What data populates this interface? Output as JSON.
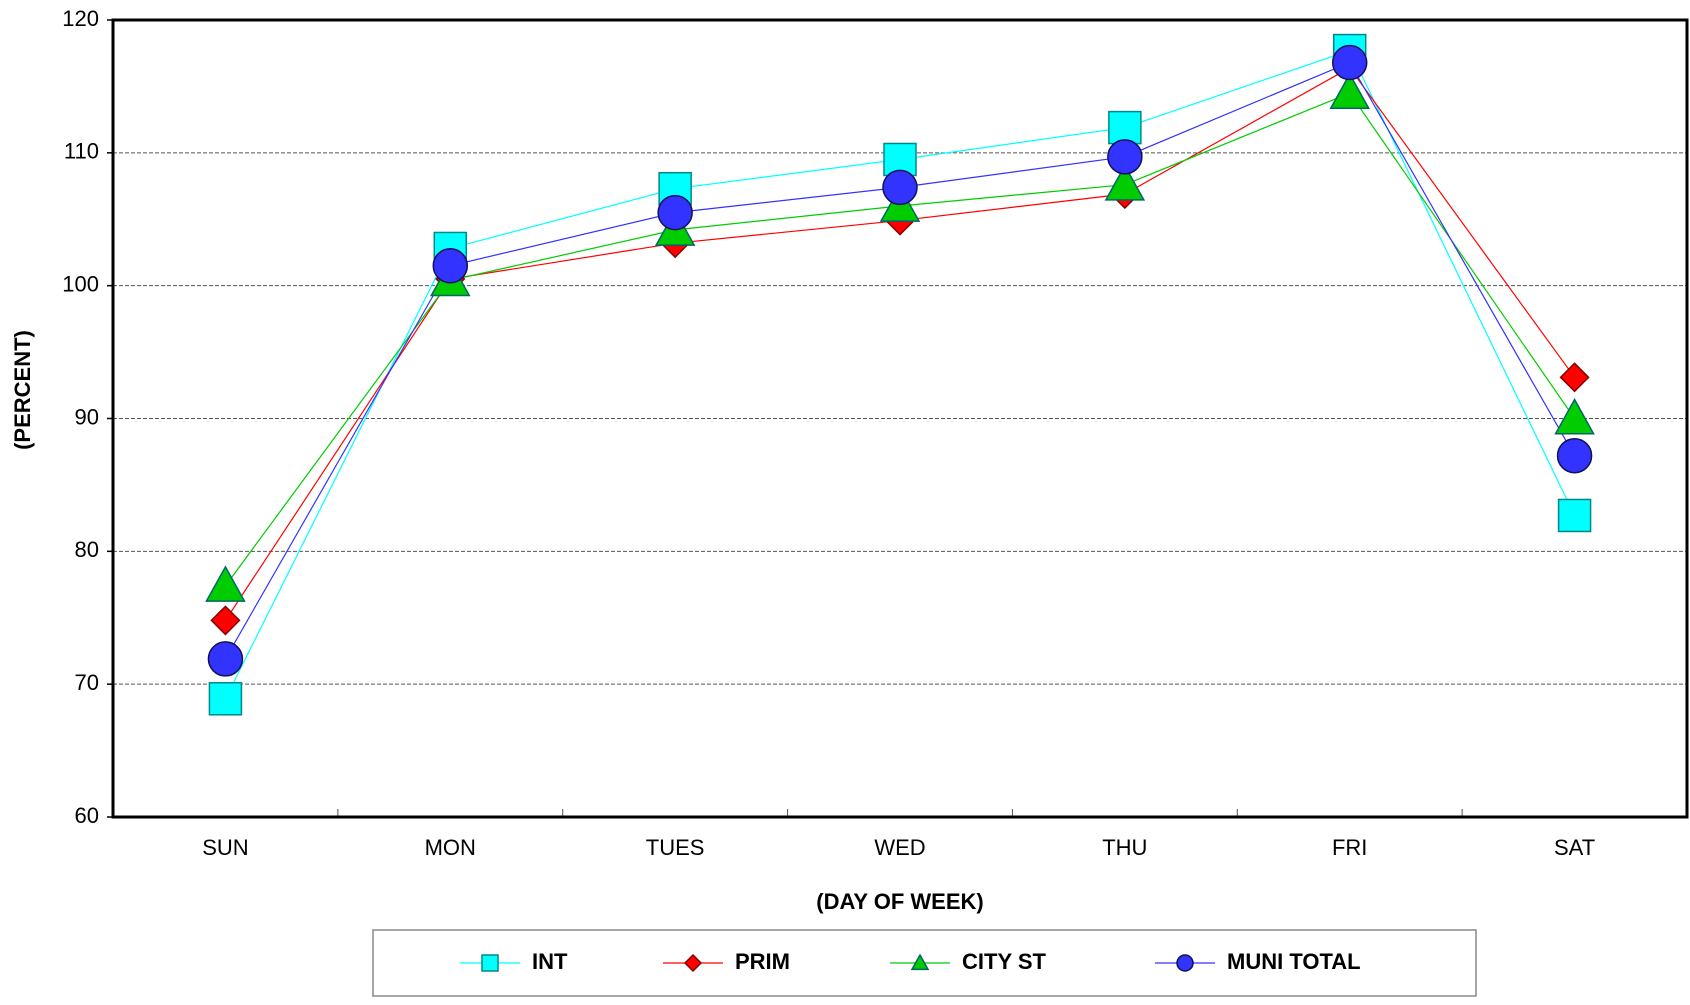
{
  "chart_data": {
    "type": "line",
    "x_label": "(DAY OF WEEK)",
    "y_label": "(PERCENT)",
    "categories": [
      "SUN",
      "MON",
      "TUES",
      "WED",
      "THU",
      "FRI",
      "SAT"
    ],
    "series": [
      {
        "name": "INT",
        "color": "#00ffff",
        "marker": "square",
        "values": [
          68.9,
          102.8,
          107.3,
          109.5,
          111.9,
          117.7,
          82.7
        ]
      },
      {
        "name": "PRIM",
        "color": "#ff0000",
        "marker": "diamond",
        "values": [
          74.8,
          100.5,
          103.2,
          104.9,
          106.9,
          116.4,
          93.1
        ]
      },
      {
        "name": "CITY ST",
        "color": "#00cc00",
        "marker": "triangle",
        "values": [
          77.4,
          100.4,
          104.2,
          106.0,
          107.6,
          114.5,
          90.0
        ]
      },
      {
        "name": "MUNI TOTAL",
        "color": "#3333ff",
        "marker": "circle",
        "values": [
          71.9,
          101.5,
          105.5,
          107.4,
          109.7,
          116.8,
          87.2
        ]
      }
    ],
    "ylim": [
      60,
      120
    ],
    "yticks": [
      60,
      70,
      80,
      90,
      100,
      110,
      120
    ],
    "grid": true,
    "legend": "bottom"
  }
}
